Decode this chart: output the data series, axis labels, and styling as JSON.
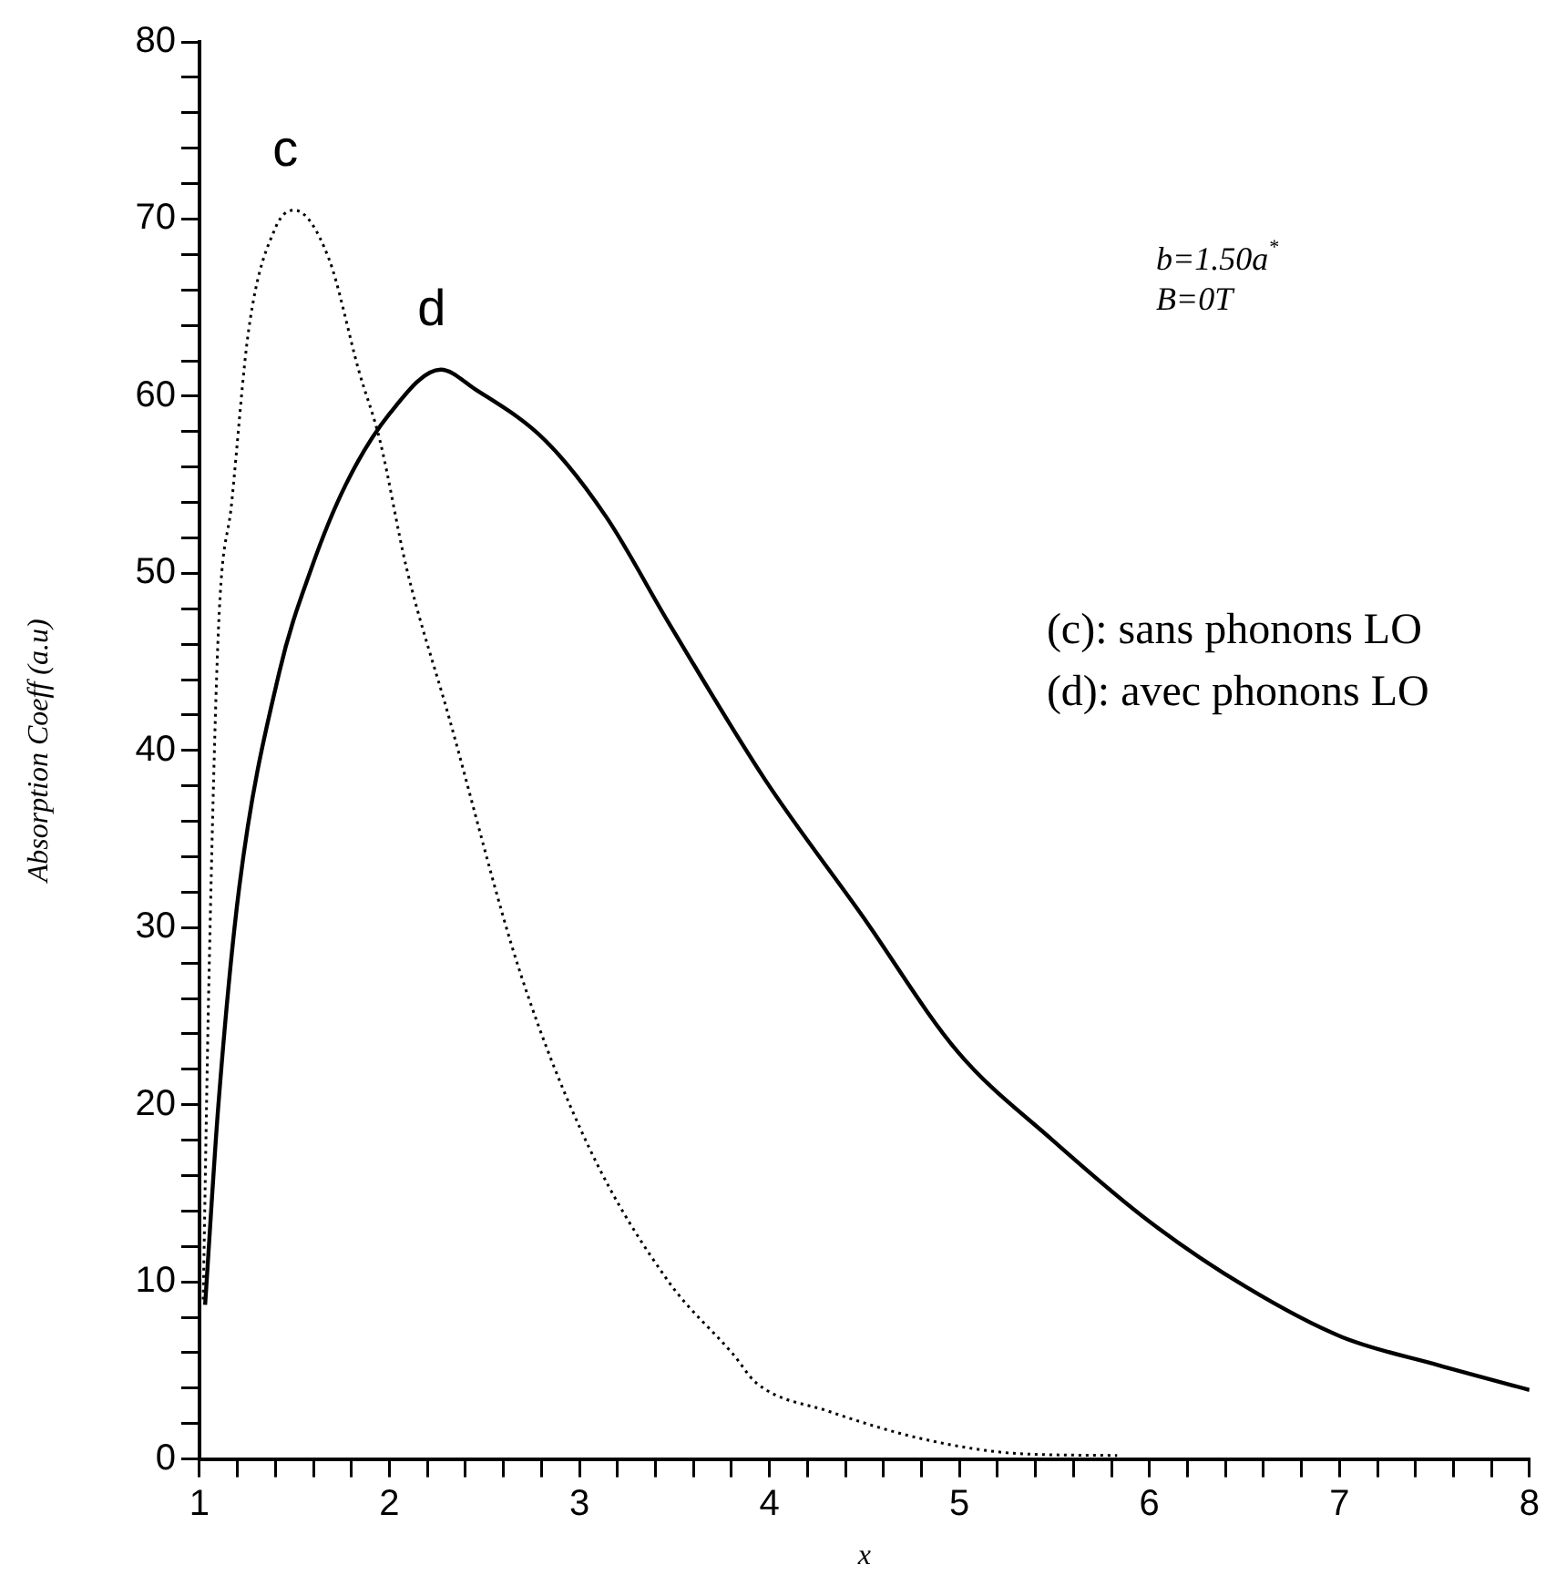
{
  "chart_data": {
    "type": "line",
    "xlabel": "x",
    "ylabel": "Absorption Coeff (a.u)",
    "xlim": [
      1,
      8
    ],
    "ylim": [
      0,
      80
    ],
    "xticks": [
      1,
      {
        "value": 1.2,
        "label": null
      },
      {
        "value": 1.4,
        "label": null
      },
      {
        "value": 1.6,
        "label": null
      },
      {
        "value": 1.8,
        "label": null
      },
      2,
      {
        "value": 2.2,
        "label": null
      },
      {
        "value": 2.4,
        "label": null
      },
      {
        "value": 2.6,
        "label": null
      },
      {
        "value": 2.8,
        "label": null
      },
      3,
      {
        "value": 3.2,
        "label": null
      },
      {
        "value": 3.4,
        "label": null
      },
      {
        "value": 3.6,
        "label": null
      },
      {
        "value": 3.8,
        "label": null
      },
      4,
      {
        "value": 4.2,
        "label": null
      },
      {
        "value": 4.4,
        "label": null
      },
      {
        "value": 4.6,
        "label": null
      },
      {
        "value": 4.8,
        "label": null
      },
      5,
      {
        "value": 5.2,
        "label": null
      },
      {
        "value": 5.4,
        "label": null
      },
      {
        "value": 5.6,
        "label": null
      },
      {
        "value": 5.8,
        "label": null
      },
      6,
      {
        "value": 6.2,
        "label": null
      },
      {
        "value": 6.4,
        "label": null
      },
      {
        "value": 6.6,
        "label": null
      },
      {
        "value": 6.8,
        "label": null
      },
      7,
      {
        "value": 7.2,
        "label": null
      },
      {
        "value": 7.4,
        "label": null
      },
      {
        "value": 7.6,
        "label": null
      },
      {
        "value": 7.8,
        "label": null
      },
      8
    ],
    "yticks": [
      0,
      {
        "value": 2,
        "label": null
      },
      {
        "value": 4,
        "label": null
      },
      {
        "value": 6,
        "label": null
      },
      {
        "value": 8,
        "label": null
      },
      10,
      {
        "value": 12,
        "label": null
      },
      {
        "value": 14,
        "label": null
      },
      {
        "value": 16,
        "label": null
      },
      {
        "value": 18,
        "label": null
      },
      20,
      {
        "value": 22,
        "label": null
      },
      {
        "value": 24,
        "label": null
      },
      {
        "value": 26,
        "label": null
      },
      {
        "value": 28,
        "label": null
      },
      30,
      {
        "value": 32,
        "label": null
      },
      {
        "value": 34,
        "label": null
      },
      {
        "value": 36,
        "label": null
      },
      {
        "value": 38,
        "label": null
      },
      40,
      {
        "value": 42,
        "label": null
      },
      {
        "value": 44,
        "label": null
      },
      {
        "value": 46,
        "label": null
      },
      {
        "value": 48,
        "label": null
      },
      50,
      {
        "value": 52,
        "label": null
      },
      {
        "value": 54,
        "label": null
      },
      {
        "value": 56,
        "label": null
      },
      {
        "value": 58,
        "label": null
      },
      60,
      {
        "value": 62,
        "label": null
      },
      {
        "value": 64,
        "label": null
      },
      {
        "value": 66,
        "label": null
      },
      {
        "value": 68,
        "label": null
      },
      70,
      {
        "value": 72,
        "label": null
      },
      {
        "value": 74,
        "label": null
      },
      {
        "value": 76,
        "label": null
      },
      {
        "value": 78,
        "label": null
      },
      80
    ],
    "grid": false,
    "legend": false,
    "marker": "none",
    "series": [
      {
        "name": "c",
        "color": "#000000",
        "line_style": "dotted",
        "x": [
          1.02,
          1.05,
          1.1,
          1.17,
          1.26,
          1.4,
          1.5,
          1.68,
          1.84,
          1.95,
          2.09,
          2.31,
          2.69,
          3.05,
          3.47,
          3.81,
          3.93,
          4.31,
          4.82,
          5.32,
          5.83
        ],
        "values": [
          9,
          27,
          46.8,
          54,
          63.8,
          69.5,
          70.5,
          67.8,
          61.4,
          57.5,
          50.3,
          42,
          27.4,
          17.6,
          10,
          5.9,
          4.3,
          2.7,
          1.1,
          0.3,
          0.2
        ]
      },
      {
        "name": "d",
        "color": "#000000",
        "line_style": "solid",
        "x": [
          1.03,
          1.1,
          1.21,
          1.42,
          1.59,
          1.77,
          2,
          2.27,
          2.45,
          2.82,
          3.14,
          3.47,
          3.98,
          4.48,
          4.99,
          5.49,
          6,
          6.51,
          7.01,
          7.52,
          8
        ],
        "values": [
          8.7,
          20,
          32.3,
          44.4,
          50.3,
          55,
          59,
          61.5,
          60.4,
          57.5,
          53.2,
          47.2,
          38.3,
          30.8,
          23,
          18,
          13.4,
          9.7,
          6.9,
          5.3,
          3.9
        ]
      }
    ],
    "annotations": [
      "b=1.50a$^{*}$",
      "B=0T",
      "(c): sans phonons LO",
      "(d): avec phonons LO"
    ]
  }
}
